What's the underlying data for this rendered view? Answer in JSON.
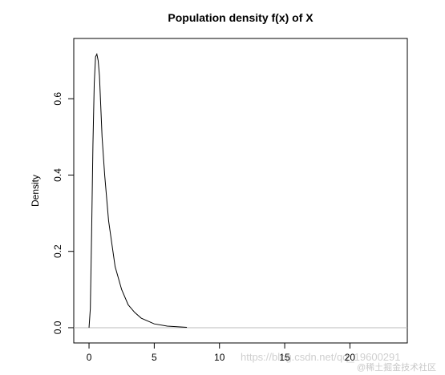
{
  "chart_data": {
    "type": "line",
    "title": "Population density f(x) of X",
    "ylabel": "Density",
    "x": [
      0,
      0.1,
      0.2,
      0.3,
      0.4,
      0.5,
      0.6,
      0.7,
      0.8,
      1.0,
      1.2,
      1.5,
      2,
      2.5,
      3,
      3.5,
      4,
      5,
      6,
      7,
      7.5
    ],
    "series": [
      {
        "color": "#000000",
        "values": [
          0,
          0.05,
          0.25,
          0.48,
          0.64,
          0.71,
          0.717,
          0.7,
          0.66,
          0.5,
          0.4,
          0.28,
          0.16,
          0.1,
          0.06,
          0.04,
          0.025,
          0.01,
          0.004,
          0.002,
          0.001
        ]
      }
    ],
    "xlim": [
      -1.17,
      24.4
    ],
    "xticks": [
      0,
      5,
      10,
      15,
      20
    ],
    "ylim": [
      -0.04,
      0.758
    ],
    "yticks": [
      {
        "value": 0,
        "label": "0.0"
      },
      0.2,
      0.4,
      0.6
    ],
    "hline": 0,
    "hline_color": "#bbbbbb"
  },
  "watermark": {
    "url": "https://blog.csdn.net/qq_19600291",
    "credit": "@稀土掘金技术社区"
  }
}
